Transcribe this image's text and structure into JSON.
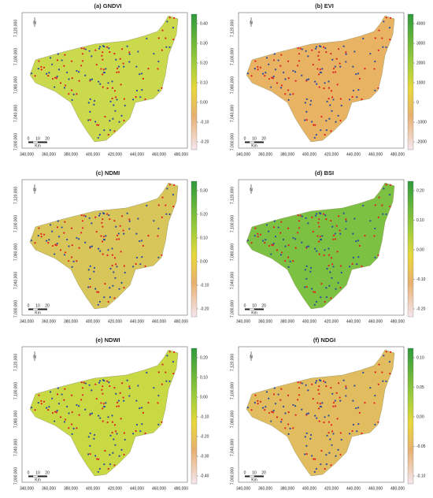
{
  "x_ticks": [
    "340,000",
    "360,000",
    "380,000",
    "400,000",
    "420,000",
    "440,000",
    "460,000",
    "480,000"
  ],
  "y_ticks": [
    "7,000,000",
    "7,040,000",
    "7,080,000",
    "7,100,000",
    "7,120,000"
  ],
  "north_label": "N",
  "scale_labels": [
    "0",
    "10",
    "20"
  ],
  "scale_unit": "Km",
  "panels": [
    {
      "title": "(a) GNDVI",
      "legend_ticks": [
        "0.40",
        "0.30",
        "0.20",
        "0.10",
        "0.00",
        "-0.10",
        "-0.20"
      ]
    },
    {
      "title": "(b) EVI",
      "legend_ticks": [
        "4000",
        "3000",
        "2000",
        "1000",
        "0",
        "-1000",
        "-2000"
      ]
    },
    {
      "title": "(c) NDMI",
      "legend_ticks": [
        "0.30",
        "0.20",
        "0.10",
        "0.00",
        "-0.10",
        "-0.20"
      ]
    },
    {
      "title": "(d) BSI",
      "legend_ticks": [
        "0.20",
        "0.10",
        "0.00",
        "-0.10",
        "-0.20"
      ]
    },
    {
      "title": "(e) NDWI",
      "legend_ticks": [
        "0.20",
        "0.10",
        "0.00",
        "-0.10",
        "-0.20",
        "-0.30",
        "-0.40"
      ]
    },
    {
      "title": "(f) NDGI",
      "legend_ticks": [
        "0.10",
        "0.05",
        "0.00",
        "-0.05",
        "-0.10"
      ]
    }
  ]
}
